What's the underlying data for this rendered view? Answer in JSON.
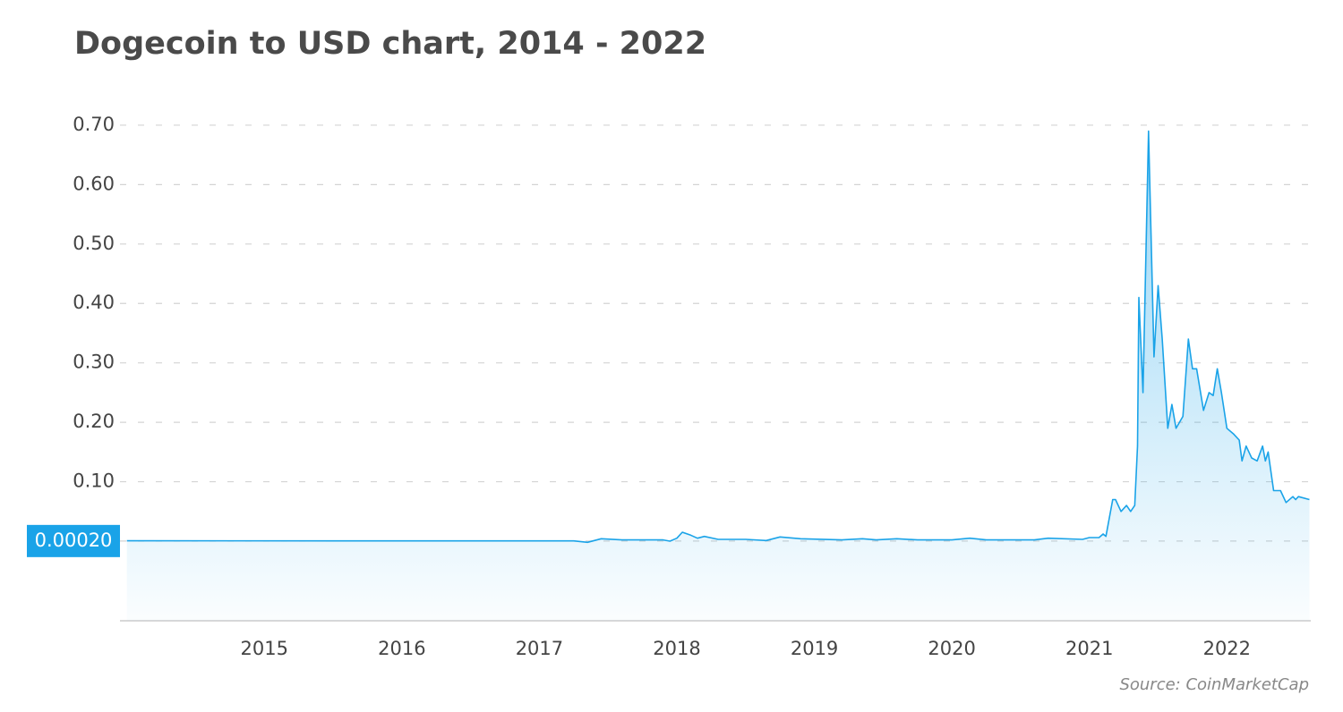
{
  "chart_data": {
    "type": "area",
    "title": "Dogecoin to USD chart, 2014 - 2022",
    "source": "Source: CoinMarketCap",
    "color": "#1aa3e8",
    "grid": true,
    "xlim": [
      2013.95,
      2022.61
    ],
    "ylim": [
      -0.134,
      0.73
    ],
    "xticks": [
      2015,
      2016,
      2017,
      2018,
      2019,
      2020,
      2021,
      2022
    ],
    "yticks": [
      {
        "value": 0.0002,
        "label": "0.00020",
        "highlight": "#1aa3e8"
      },
      {
        "value": 0.1,
        "label": "0.10"
      },
      {
        "value": 0.2,
        "label": "0.20"
      },
      {
        "value": 0.3,
        "label": "0.30"
      },
      {
        "value": 0.4,
        "label": "0.40"
      },
      {
        "value": 0.5,
        "label": "0.50"
      },
      {
        "value": 0.6,
        "label": "0.60"
      },
      {
        "value": 0.7,
        "label": "0.70"
      }
    ],
    "x": [
      2014.0,
      2017.25,
      2017.35,
      2017.45,
      2017.6,
      2017.9,
      2017.95,
      2018.0,
      2018.04,
      2018.1,
      2018.15,
      2018.2,
      2018.3,
      2018.5,
      2018.65,
      2018.75,
      2018.9,
      2019.2,
      2019.35,
      2019.45,
      2019.6,
      2019.75,
      2020.0,
      2020.13,
      2020.25,
      2020.6,
      2020.7,
      2020.95,
      2021.0,
      2021.07,
      2021.1,
      2021.12,
      2021.17,
      2021.19,
      2021.23,
      2021.27,
      2021.3,
      2021.33,
      2021.35,
      2021.36,
      2021.39,
      2021.43,
      2021.47,
      2021.5,
      2021.53,
      2021.57,
      2021.6,
      2021.63,
      2021.68,
      2021.72,
      2021.75,
      2021.78,
      2021.83,
      2021.87,
      2021.9,
      2021.93,
      2021.96,
      2022.0,
      2022.05,
      2022.09,
      2022.11,
      2022.14,
      2022.18,
      2022.22,
      2022.26,
      2022.28,
      2022.3,
      2022.34,
      2022.39,
      2022.43,
      2022.48,
      2022.5,
      2022.52,
      2022.6
    ],
    "values": [
      0.0006,
      0.0004,
      -0.002,
      0.004,
      0.002,
      0.002,
      0.0,
      0.005,
      0.015,
      0.01,
      0.005,
      0.008,
      0.003,
      0.003,
      0.001,
      0.007,
      0.004,
      0.002,
      0.004,
      0.002,
      0.004,
      0.002,
      0.002,
      0.005,
      0.002,
      0.002,
      0.005,
      0.003,
      0.006,
      0.006,
      0.012,
      0.008,
      0.07,
      0.07,
      0.05,
      0.06,
      0.05,
      0.06,
      0.16,
      0.41,
      0.25,
      0.69,
      0.31,
      0.43,
      0.34,
      0.19,
      0.23,
      0.19,
      0.21,
      0.34,
      0.29,
      0.29,
      0.22,
      0.25,
      0.245,
      0.29,
      0.25,
      0.19,
      0.18,
      0.17,
      0.135,
      0.16,
      0.14,
      0.135,
      0.16,
      0.135,
      0.15,
      0.085,
      0.085,
      0.065,
      0.075,
      0.07,
      0.075,
      0.07
    ]
  }
}
